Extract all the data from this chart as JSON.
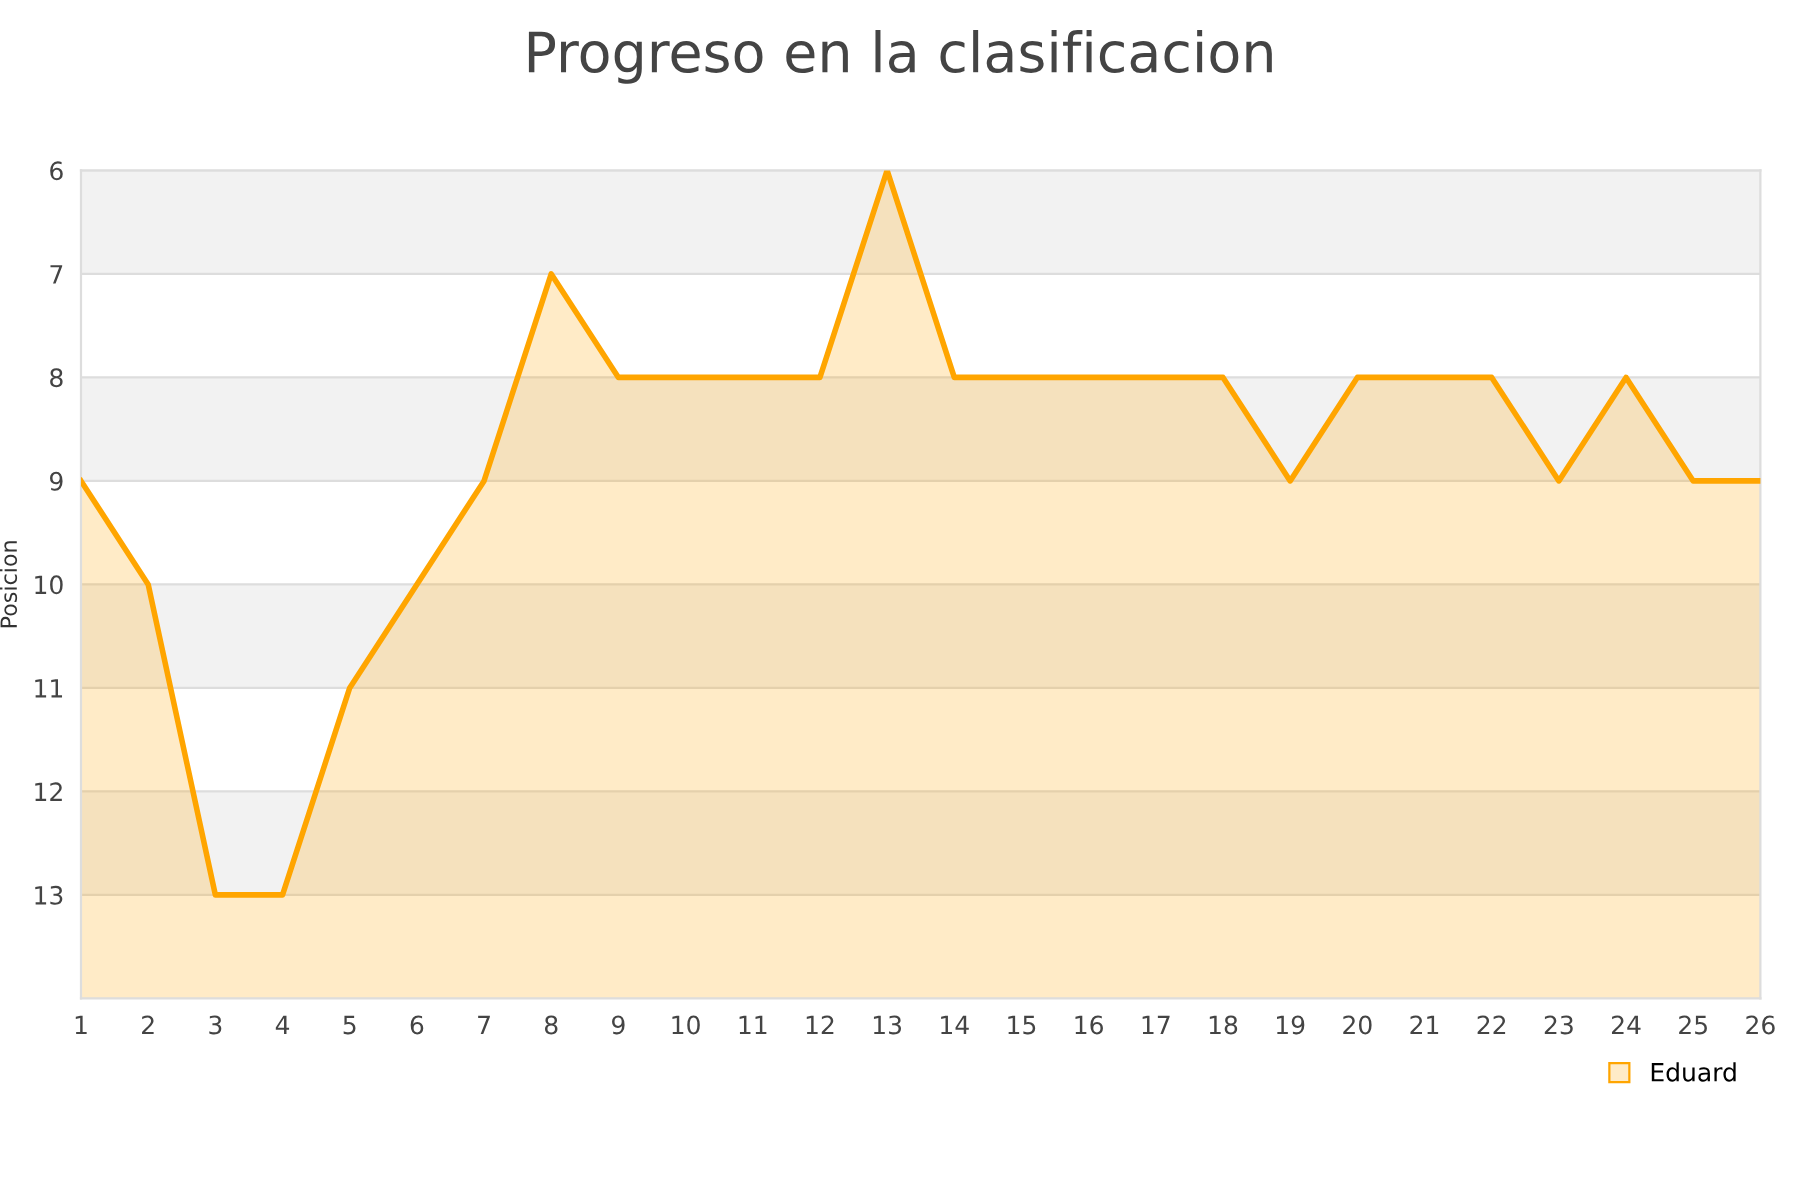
{
  "chart_data": {
    "type": "area",
    "title": "Progreso en la clasificacion",
    "ylabel": "Posicion",
    "x": [
      1,
      2,
      3,
      4,
      5,
      6,
      7,
      8,
      9,
      10,
      11,
      12,
      13,
      14,
      15,
      16,
      17,
      18,
      19,
      20,
      21,
      22,
      23,
      24,
      25,
      26
    ],
    "series": [
      {
        "name": "Eduard",
        "color": "#ffa500",
        "values": [
          9,
          10,
          13,
          13,
          11,
          10,
          9,
          7,
          8,
          8,
          8,
          8,
          6,
          8,
          8,
          8,
          8,
          8,
          9,
          8,
          8,
          8,
          9,
          8,
          9,
          9
        ]
      }
    ],
    "xlim": [
      1,
      26
    ],
    "xticks": [
      1,
      2,
      3,
      4,
      5,
      6,
      7,
      8,
      9,
      10,
      11,
      12,
      13,
      14,
      15,
      16,
      17,
      18,
      19,
      20,
      21,
      22,
      23,
      24,
      25,
      26
    ],
    "ylim": [
      14,
      6
    ],
    "yticks": [
      6,
      7,
      8,
      9,
      10,
      11,
      12,
      13
    ],
    "bands": [
      {
        "axis": "y",
        "from": 6,
        "to": 7,
        "color": "#f2f2f2"
      },
      {
        "axis": "y",
        "from": 8,
        "to": 9,
        "color": "#f2f2f2"
      },
      {
        "axis": "y",
        "from": 10,
        "to": 11,
        "color": "#f2f2f2"
      },
      {
        "axis": "y",
        "from": 12,
        "to": 13,
        "color": "#f2f2f2"
      }
    ],
    "grid": "y",
    "legend": "bottom right",
    "marker": "none",
    "line_style": "solid"
  }
}
